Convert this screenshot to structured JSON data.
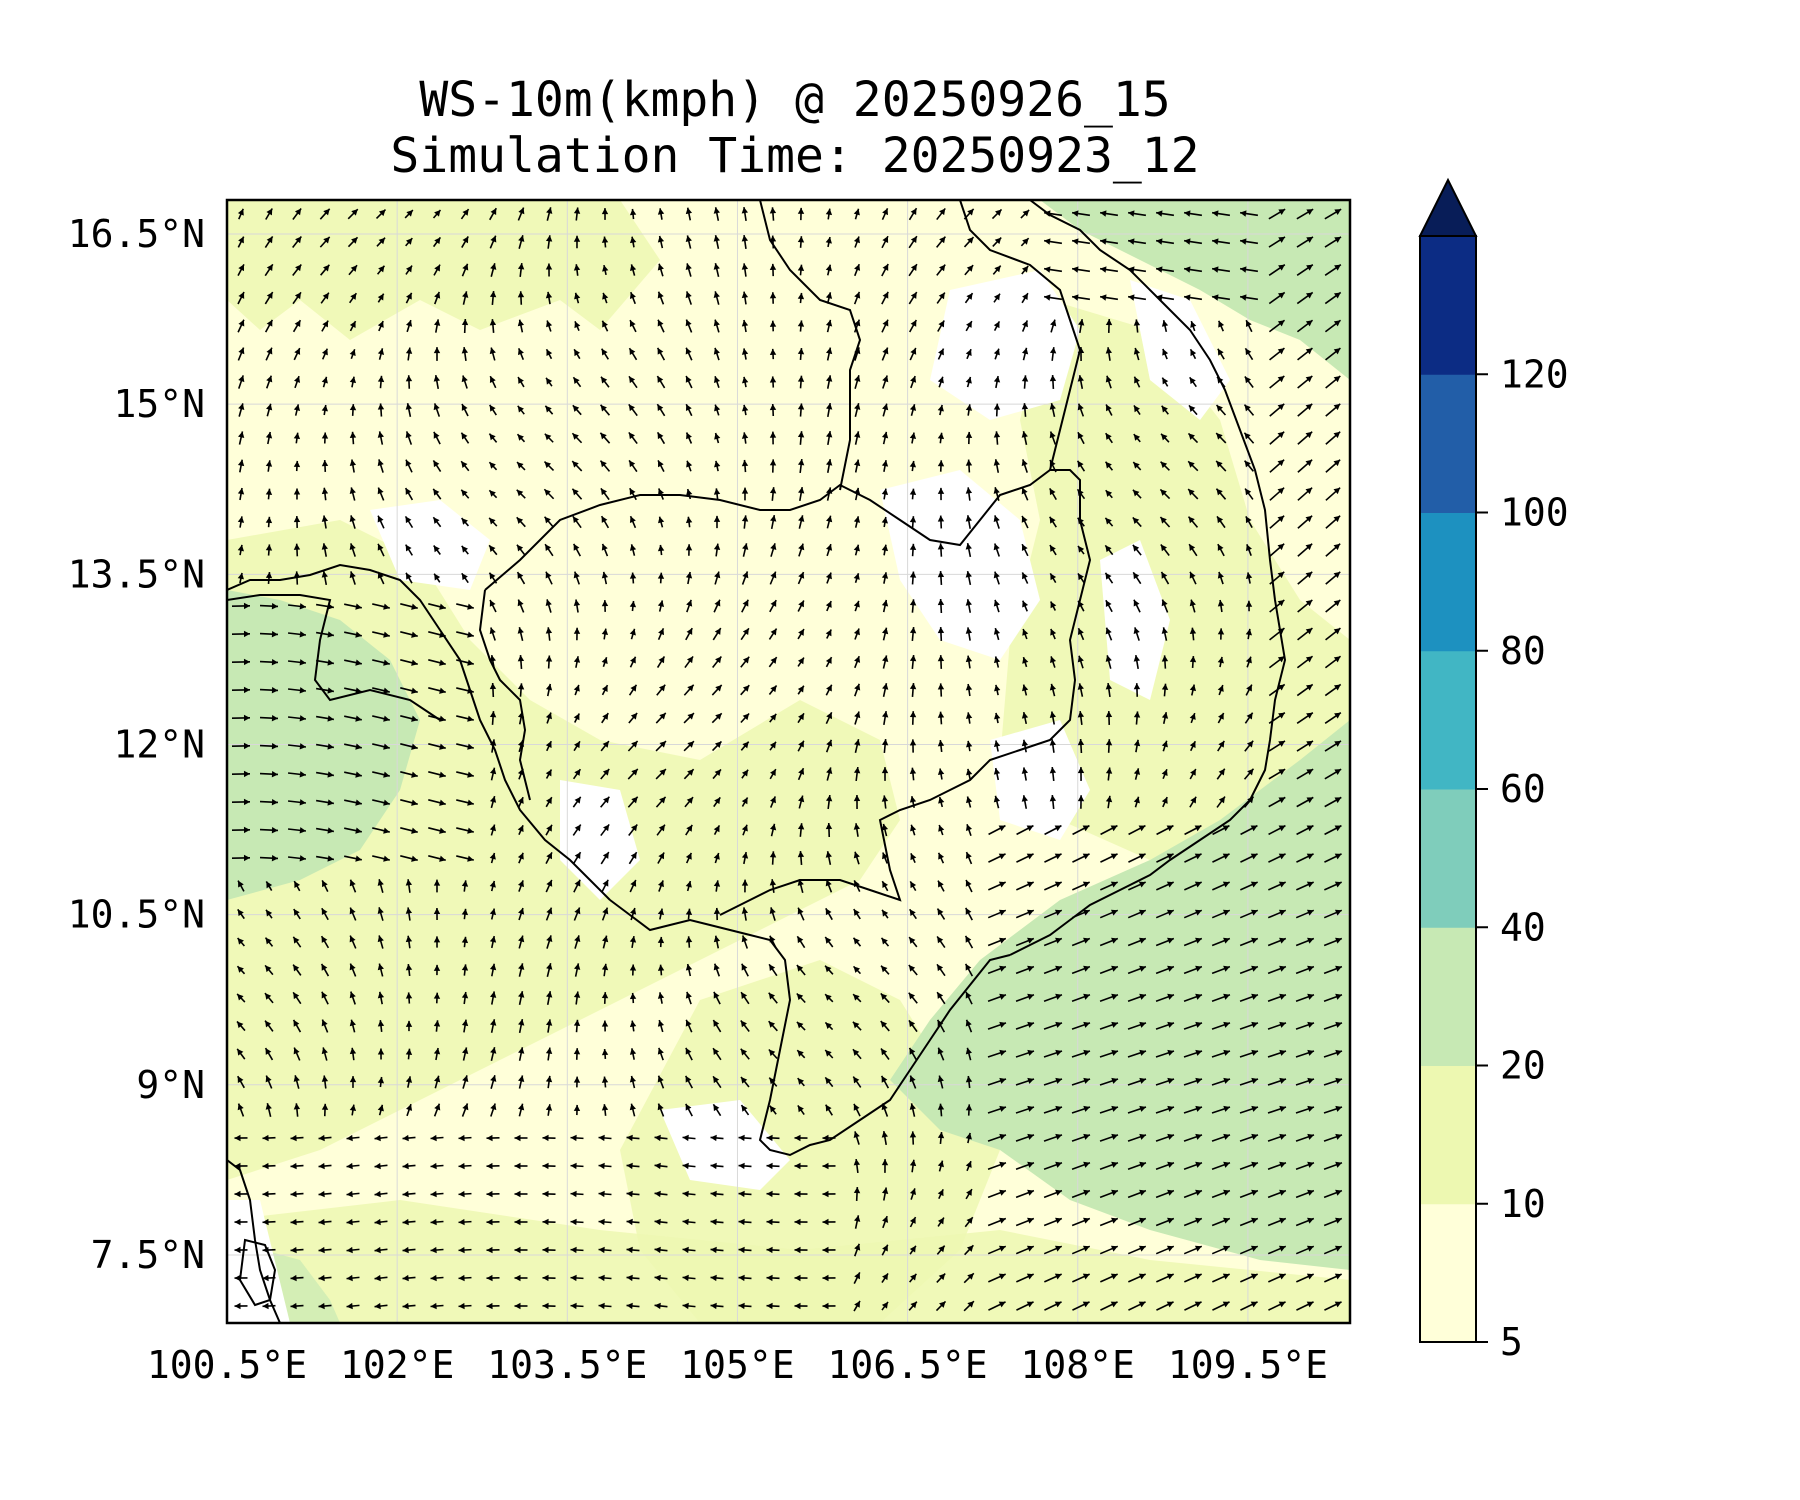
{
  "title": {
    "line1": "WS-10m(kmph) @ 20250926_15",
    "line2": "Simulation Time: 20250923_12"
  },
  "map": {
    "lon_range": [
      100.5,
      110.4
    ],
    "lat_range": [
      6.9,
      16.8
    ],
    "lon_ticks": [
      {
        "value": 100.5,
        "label": "100.5°E"
      },
      {
        "value": 102.0,
        "label": "102°E"
      },
      {
        "value": 103.5,
        "label": "103.5°E"
      },
      {
        "value": 105.0,
        "label": "105°E"
      },
      {
        "value": 106.5,
        "label": "106.5°E"
      },
      {
        "value": 108.0,
        "label": "108°E"
      },
      {
        "value": 109.5,
        "label": "109.5°E"
      }
    ],
    "lat_ticks": [
      {
        "value": 16.5,
        "label": "16.5°N"
      },
      {
        "value": 15.0,
        "label": "15°N"
      },
      {
        "value": 13.5,
        "label": "13.5°N"
      },
      {
        "value": 12.0,
        "label": "12°N"
      },
      {
        "value": 10.5,
        "label": "10.5°N"
      },
      {
        "value": 9.0,
        "label": "9°N"
      },
      {
        "value": 7.5,
        "label": "7.5°N"
      }
    ],
    "gridlines": true,
    "coastline_color": "#000000"
  },
  "colorbar": {
    "levels": [
      5,
      10,
      20,
      40,
      60,
      80,
      100,
      120
    ],
    "labels": [
      "5",
      "10",
      "20",
      "40",
      "60",
      "80",
      "100",
      "120"
    ],
    "colors": [
      "#ffffd9",
      "#edf8b1",
      "#c7e9b4",
      "#7fcdbb",
      "#41b6c4",
      "#1d91c0",
      "#225ea8",
      "#0c2c84"
    ],
    "extend": "max",
    "extend_color": "#081d58"
  },
  "legend": {
    "position": "right",
    "orientation": "vertical"
  }
}
